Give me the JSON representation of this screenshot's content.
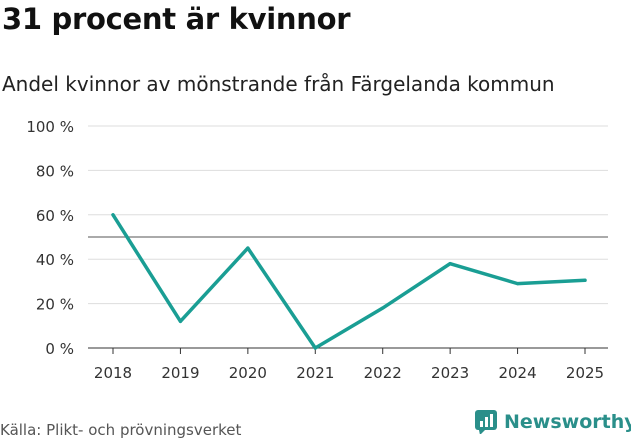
{
  "header": {
    "title": "31 procent är kvinnor",
    "subtitle": "Andel kvinnor av mönstrande från Färgelanda kommun"
  },
  "footer": {
    "source": "Källa: Plikt- och prövningsverket",
    "brand": "Newsworthy"
  },
  "colors": {
    "line": "#1a9e94",
    "reference": "#777777",
    "grid": "#dddddd",
    "brand": "#2a8f8a"
  },
  "icons": {
    "brand": "newsworthy-logo-icon"
  },
  "chart_data": {
    "type": "line",
    "title": "31 procent är kvinnor",
    "subtitle": "Andel kvinnor av mönstrande från Färgelanda kommun",
    "categories": [
      "2018",
      "2019",
      "2020",
      "2021",
      "2022",
      "2023",
      "2024",
      "2025"
    ],
    "series": [
      {
        "values": [
          60,
          12,
          45,
          0,
          18,
          38,
          29,
          30.5
        ]
      }
    ],
    "reference_line": 50,
    "ylim": [
      0,
      100
    ],
    "yticks": [
      0,
      20,
      40,
      60,
      80,
      100
    ],
    "ytick_labels": [
      "0 %",
      "20 %",
      "40 %",
      "60 %",
      "80 %",
      "100 %"
    ],
    "grid": true
  }
}
